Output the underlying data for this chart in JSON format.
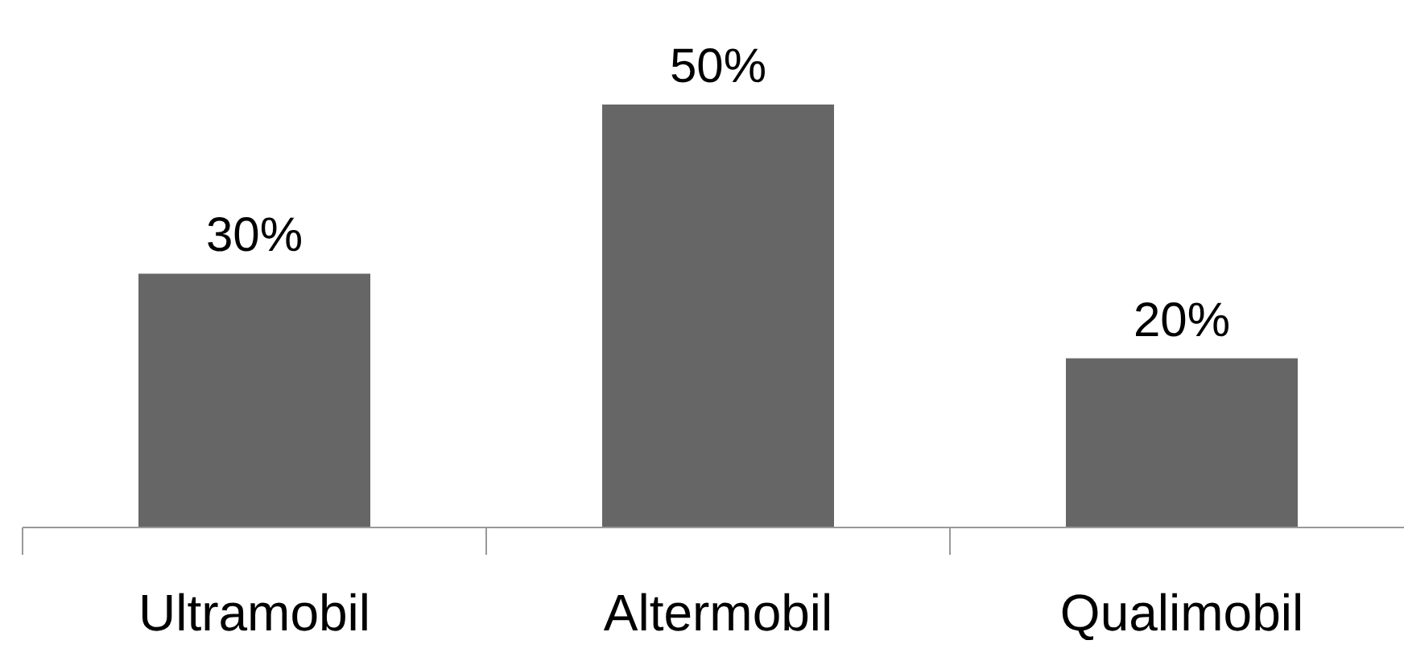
{
  "chart_data": {
    "type": "bar",
    "categories": [
      "Ultramobil",
      "Altermobil",
      "Qualimobil"
    ],
    "values": [
      30,
      50,
      20
    ],
    "value_labels": [
      "30%",
      "50%",
      "20%"
    ],
    "color": "#666666"
  }
}
